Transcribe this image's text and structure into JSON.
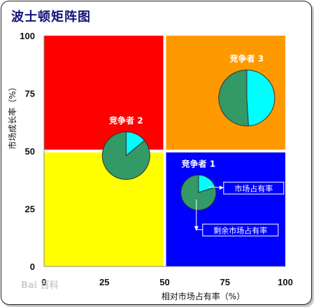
{
  "title": "波士顿矩阵图",
  "chart_data": {
    "type": "scatter",
    "xlabel": "相对市场占有率（%）",
    "ylabel": "市场成长率（%）",
    "xlim": [
      0,
      100
    ],
    "ylim": [
      0,
      100
    ],
    "x_ticks": [
      "0",
      "25",
      "50",
      "75",
      "100"
    ],
    "y_ticks": [
      "0",
      "25",
      "50",
      "75",
      "100"
    ],
    "quadrant_colors": {
      "top_left": "#ff0000",
      "top_right": "#ff9900",
      "bottom_left": "#ffff00",
      "bottom_right": "#0000ff"
    },
    "pie_colors": {
      "market_share": "#00ffff",
      "remaining": "#339966"
    },
    "competitors": [
      {
        "label": "竞争者 1",
        "x": 64,
        "y": 32,
        "share_fraction": 0.2
      },
      {
        "label": "竞争者 2",
        "x": 34,
        "y": 48,
        "share_fraction": 0.14
      },
      {
        "label": "竞争者 3",
        "x": 84,
        "y": 73,
        "share_fraction": 0.49
      }
    ],
    "annotations": [
      "市场占有率",
      "剩余市场占有率"
    ]
  },
  "watermark": "Bai 百科"
}
